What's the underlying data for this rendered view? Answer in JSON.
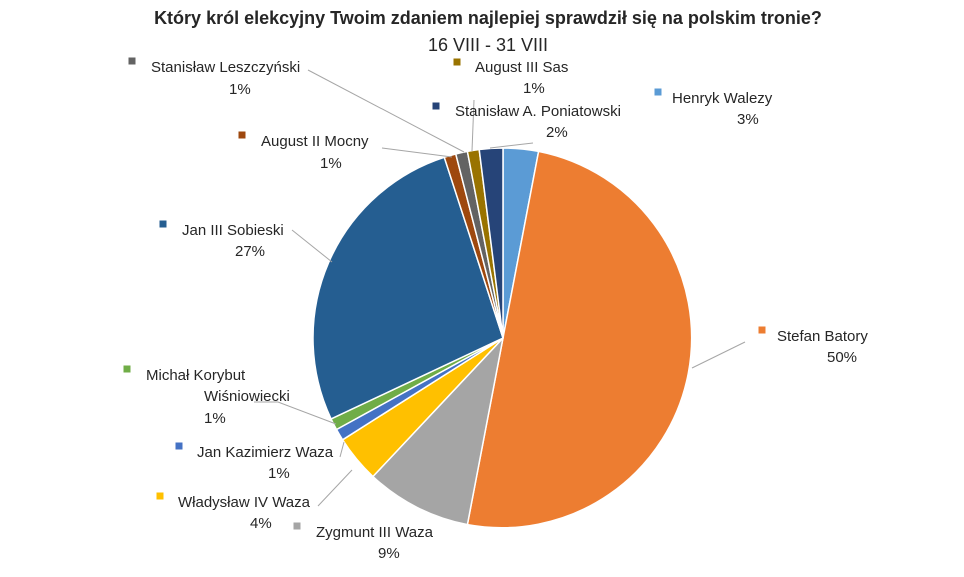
{
  "chart_data": {
    "type": "pie",
    "title": "Który król elekcyjny Twoim zdaniem najlepiej sprawdził się na polskim tronie?",
    "subtitle": "16 VIII - 31 VIII",
    "slices": [
      {
        "name": "Henryk Walezy",
        "value": 3,
        "value_label": "3%",
        "color": "#5B9BD5"
      },
      {
        "name": "Stefan Batory",
        "value": 50,
        "value_label": "50%",
        "color": "#ED7D31"
      },
      {
        "name": "Zygmunt III Waza",
        "value": 9,
        "value_label": "9%",
        "color": "#A5A5A5"
      },
      {
        "name": "Władysław IV Waza",
        "value": 4,
        "value_label": "4%",
        "color": "#FFC000"
      },
      {
        "name": "Jan Kazimierz Waza",
        "value": 1,
        "value_label": "1%",
        "color": "#4472C4"
      },
      {
        "name": "Michał Korybut Wiśniowiecki",
        "value": 1,
        "value_label": "1%",
        "color": "#70AD47"
      },
      {
        "name": "Jan III Sobieski",
        "value": 27,
        "value_label": "27%",
        "color": "#255E91"
      },
      {
        "name": "August II Mocny",
        "value": 1,
        "value_label": "1%",
        "color": "#9E480E"
      },
      {
        "name": "Stanisław Leszczyński",
        "value": 1,
        "value_label": "1%",
        "color": "#636363"
      },
      {
        "name": "August III Sas",
        "value": 1,
        "value_label": "1%",
        "color": "#997300"
      },
      {
        "name": "Stanisław A. Poniatowski",
        "value": 2,
        "value_label": "2%",
        "color": "#264478"
      }
    ]
  }
}
